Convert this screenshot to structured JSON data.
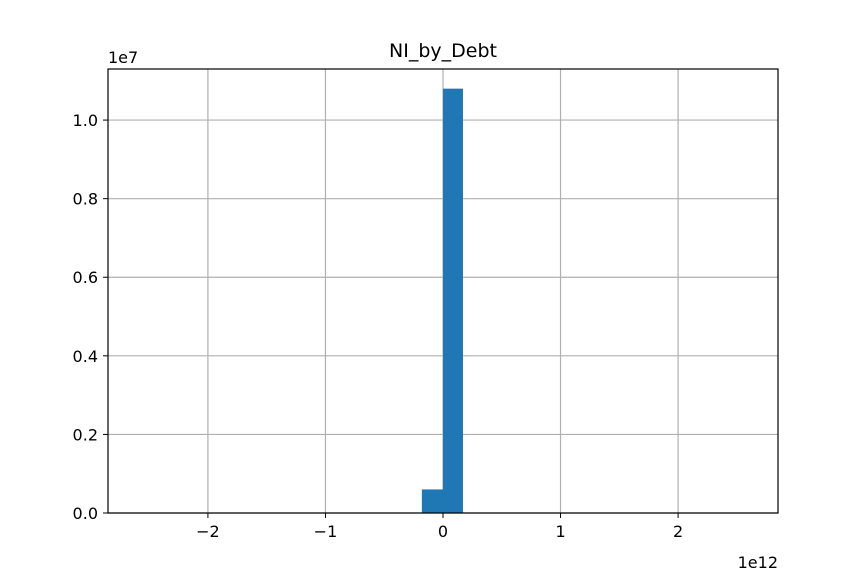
{
  "chart_data": {
    "type": "bar",
    "title": "NI_by_Debt",
    "xlabel": "",
    "ylabel": "",
    "x_offset_label": "1e12",
    "y_offset_label": "1e7",
    "xlim": [
      -2.85,
      2.85
    ],
    "ylim": [
      0,
      1.13
    ],
    "x_scale": 1000000000000.0,
    "y_scale": 10000000.0,
    "grid": true,
    "bar_color": "#1f77b4",
    "grid_color": "#b0b0b0",
    "bins": [
      {
        "x_start": -0.18,
        "x_end": 0.0,
        "value": 0.06
      },
      {
        "x_start": 0.0,
        "x_end": 0.17,
        "value": 1.08
      }
    ],
    "x_ticks": [
      {
        "value": -2,
        "label": "−2"
      },
      {
        "value": -1,
        "label": "−1"
      },
      {
        "value": 0,
        "label": "0"
      },
      {
        "value": 1,
        "label": "1"
      },
      {
        "value": 2,
        "label": "2"
      }
    ],
    "y_ticks": [
      {
        "value": 0.0,
        "label": "0.0"
      },
      {
        "value": 0.2,
        "label": "0.2"
      },
      {
        "value": 0.4,
        "label": "0.4"
      },
      {
        "value": 0.6,
        "label": "0.6"
      },
      {
        "value": 0.8,
        "label": "0.8"
      },
      {
        "value": 1.0,
        "label": "1.0"
      }
    ]
  }
}
